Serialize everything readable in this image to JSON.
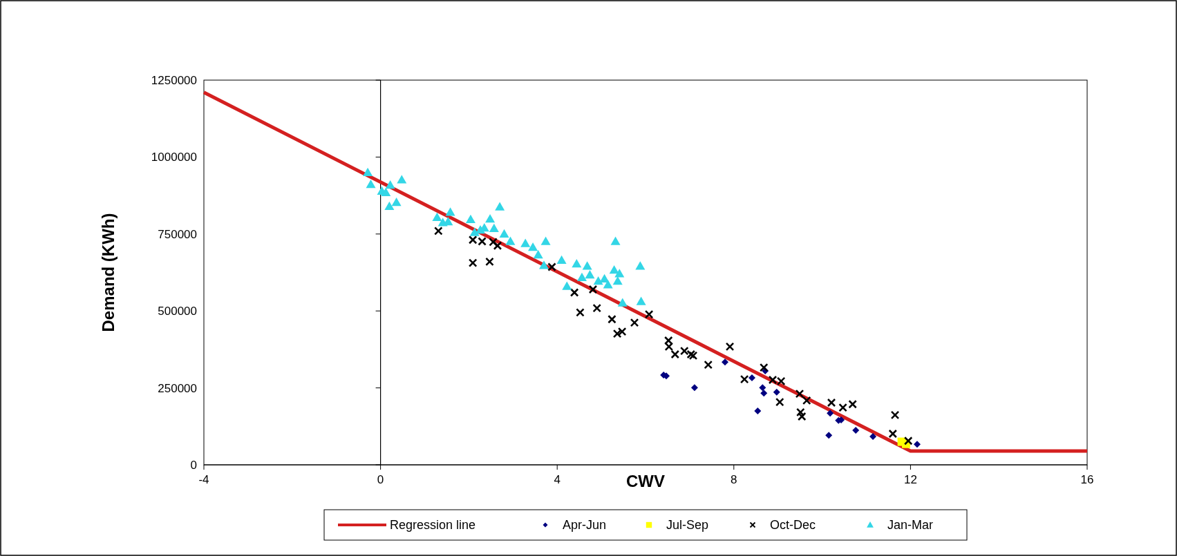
{
  "chart_data": {
    "type": "scatter",
    "xlabel": "CWV",
    "ylabel": "Demand (KWh)",
    "xlim": [
      -4,
      16
    ],
    "ylim": [
      0,
      1250000
    ],
    "xticks": [
      -4,
      0,
      4,
      8,
      12,
      16
    ],
    "yticks": [
      0,
      250000,
      500000,
      750000,
      1000000,
      1250000
    ],
    "legend": "bottom",
    "series": [
      {
        "name": "Regression line",
        "type": "line",
        "color": "#d42020",
        "marker": "none",
        "line_style": "solid",
        "x": [
          -4,
          12,
          16
        ],
        "values": [
          1210000,
          45000,
          45000
        ]
      },
      {
        "name": "Apr-Jun",
        "color": "#000080",
        "marker": "diamond",
        "x": [
          6.41,
          6.47,
          7.11,
          7.8,
          8.41,
          8.71,
          8.65,
          8.68,
          8.97,
          8.54,
          10.18,
          10.37,
          10.43,
          10.15,
          10.76,
          11.15,
          12.15
        ],
        "values": [
          292000,
          289000,
          251000,
          334000,
          283000,
          305000,
          251000,
          233000,
          236000,
          175000,
          168000,
          144000,
          146000,
          96000,
          112000,
          92000,
          67000
        ]
      },
      {
        "name": "Jul-Sep",
        "color": "#ffff00",
        "marker": "square",
        "x": [
          11.8,
          11.9
        ],
        "values": [
          75000,
          68000
        ]
      },
      {
        "name": "Oct-Dec",
        "color": "#000000",
        "marker": "cross",
        "x": [
          1.31,
          2.09,
          2.09,
          2.3,
          2.47,
          2.55,
          2.65,
          3.88,
          4.39,
          4.52,
          4.81,
          4.9,
          5.24,
          5.36,
          5.47,
          5.75,
          6.08,
          6.52,
          6.53,
          6.67,
          6.88,
          7.03,
          7.08,
          7.42,
          7.91,
          8.24,
          8.68,
          8.88,
          9.07,
          9.04,
          9.49,
          9.65,
          9.51,
          9.54,
          10.21,
          10.47,
          10.69,
          11.65,
          11.6,
          11.95
        ],
        "values": [
          760000,
          731000,
          656000,
          726000,
          660000,
          724000,
          712000,
          643000,
          560000,
          495000,
          570000,
          509000,
          473000,
          426000,
          433000,
          462000,
          489000,
          404000,
          384000,
          359000,
          370000,
          359000,
          355000,
          325000,
          384000,
          278000,
          316000,
          276000,
          272000,
          204000,
          231000,
          209000,
          171000,
          157000,
          202000,
          186000,
          197000,
          162000,
          101000,
          78000
        ]
      },
      {
        "name": "Jan-Mar",
        "color": "#33d6e6",
        "marker": "triangle",
        "x": [
          -0.29,
          -0.22,
          0.03,
          0.12,
          0.22,
          0.48,
          0.2,
          0.36,
          1.28,
          1.41,
          1.58,
          1.53,
          2.04,
          2.13,
          2.26,
          2.35,
          2.48,
          2.57,
          2.7,
          2.8,
          2.94,
          3.28,
          3.45,
          3.57,
          3.74,
          3.7,
          4.1,
          4.22,
          4.44,
          4.56,
          4.68,
          4.74,
          4.93,
          5.07,
          5.15,
          5.29,
          5.32,
          5.37,
          5.41,
          5.48,
          5.88,
          5.9
        ],
        "values": [
          950000,
          911000,
          889000,
          885000,
          909000,
          926000,
          840000,
          853000,
          804000,
          787000,
          821000,
          790000,
          797000,
          755000,
          763000,
          770000,
          799000,
          768000,
          838000,
          750000,
          726000,
          719000,
          707000,
          682000,
          726000,
          648000,
          665000,
          580000,
          653000,
          609000,
          646000,
          617000,
          597000,
          604000,
          585000,
          633000,
          726000,
          597000,
          621000,
          526000,
          646000,
          531000
        ]
      }
    ]
  }
}
